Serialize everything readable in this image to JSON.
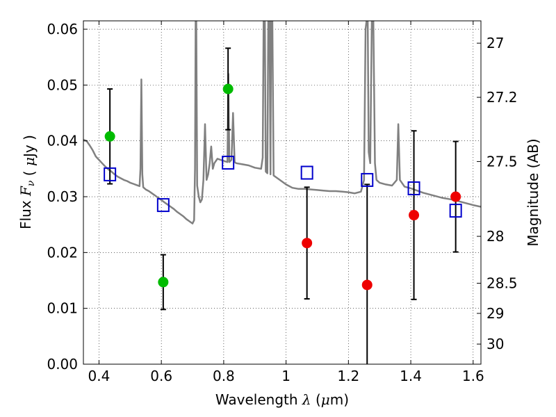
{
  "chart_data": {
    "type": "scatter",
    "xlabel": {
      "prefix": "Wavelength",
      "symbol": "λ",
      "unit_open": "(",
      "unit_mu": "μ",
      "unit_rest": "m)"
    },
    "ylabel": {
      "prefix": "Flux",
      "symbol_main": "F",
      "symbol_sub": "ν",
      "unit_open": "(",
      "unit_mu": "μ",
      "unit_rest": "Jy )"
    },
    "y2label": "Magnitude (AB)",
    "xlim": [
      0.35,
      1.625
    ],
    "ylim": [
      0.0,
      0.0615
    ],
    "grid": true,
    "x_ticks": [
      {
        "value": 0.4,
        "label": "0.4"
      },
      {
        "value": 0.6,
        "label": "0.6"
      },
      {
        "value": 0.8,
        "label": "0.8"
      },
      {
        "value": 1.0,
        "label": "1"
      },
      {
        "value": 1.2,
        "label": "1.2"
      },
      {
        "value": 1.4,
        "label": "1.4"
      },
      {
        "value": 1.6,
        "label": "1.6"
      }
    ],
    "y_ticks": [
      {
        "value": 0.0,
        "label": "0.00"
      },
      {
        "value": 0.01,
        "label": "0.01"
      },
      {
        "value": 0.02,
        "label": "0.02"
      },
      {
        "value": 0.03,
        "label": "0.03"
      },
      {
        "value": 0.04,
        "label": "0.04"
      },
      {
        "value": 0.05,
        "label": "0.05"
      },
      {
        "value": 0.06,
        "label": "0.06"
      }
    ],
    "y2_ticks": [
      {
        "flux": 0.0575,
        "label": "27"
      },
      {
        "flux": 0.0478,
        "label": "27.2"
      },
      {
        "flux": 0.0363,
        "label": "27.5"
      },
      {
        "flux": 0.0229,
        "label": "28"
      },
      {
        "flux": 0.0145,
        "label": "28.5"
      },
      {
        "flux": 0.0091,
        "label": "29"
      },
      {
        "flux": 0.0036,
        "label": "30"
      }
    ],
    "colors": {
      "green": "#00bb00",
      "red": "#ee0000",
      "model_box": "#0000cc",
      "spectrum": "#808080",
      "errorbar": "#000000"
    },
    "observed_points": [
      {
        "x": 0.435,
        "y": 0.0408,
        "err_low": 0.0085,
        "err_high": 0.0085,
        "color": "green"
      },
      {
        "x": 0.606,
        "y": 0.0147,
        "err_low": 0.0049,
        "err_high": 0.0049,
        "color": "green"
      },
      {
        "x": 0.814,
        "y": 0.0493,
        "err_low": 0.0073,
        "err_high": 0.0073,
        "color": "green"
      },
      {
        "x": 1.067,
        "y": 0.0217,
        "err_low": 0.01,
        "err_high": 0.01,
        "color": "red"
      },
      {
        "x": 1.26,
        "y": 0.0142,
        "err_low": 0.018,
        "err_high": 0.018,
        "color": "red"
      },
      {
        "x": 1.41,
        "y": 0.0267,
        "err_low": 0.0151,
        "err_high": 0.0151,
        "color": "red"
      },
      {
        "x": 1.544,
        "y": 0.03,
        "err_low": 0.0099,
        "err_high": 0.0099,
        "color": "red"
      }
    ],
    "model_photometry": [
      {
        "x": 0.435,
        "y": 0.034
      },
      {
        "x": 0.606,
        "y": 0.0285
      },
      {
        "x": 0.814,
        "y": 0.0361
      },
      {
        "x": 1.067,
        "y": 0.0343
      },
      {
        "x": 1.26,
        "y": 0.033
      },
      {
        "x": 1.41,
        "y": 0.0315
      },
      {
        "x": 1.544,
        "y": 0.0275
      }
    ],
    "spectrum": [
      [
        0.35,
        0.0402
      ],
      [
        0.36,
        0.04
      ],
      [
        0.37,
        0.0392
      ],
      [
        0.38,
        0.0383
      ],
      [
        0.39,
        0.0372
      ],
      [
        0.4,
        0.0366
      ],
      [
        0.41,
        0.036
      ],
      [
        0.42,
        0.0354
      ],
      [
        0.43,
        0.0349
      ],
      [
        0.44,
        0.0345
      ],
      [
        0.45,
        0.034
      ],
      [
        0.46,
        0.0336
      ],
      [
        0.47,
        0.0333
      ],
      [
        0.48,
        0.033
      ],
      [
        0.49,
        0.0328
      ],
      [
        0.5,
        0.0325
      ],
      [
        0.51,
        0.0323
      ],
      [
        0.52,
        0.0321
      ],
      [
        0.53,
        0.0319
      ],
      [
        0.533,
        0.035
      ],
      [
        0.536,
        0.051
      ],
      [
        0.539,
        0.034
      ],
      [
        0.542,
        0.0317
      ],
      [
        0.55,
        0.0313
      ],
      [
        0.56,
        0.031
      ],
      [
        0.57,
        0.0306
      ],
      [
        0.58,
        0.0302
      ],
      [
        0.59,
        0.0298
      ],
      [
        0.6,
        0.0294
      ],
      [
        0.61,
        0.029
      ],
      [
        0.62,
        0.0286
      ],
      [
        0.63,
        0.0282
      ],
      [
        0.64,
        0.0278
      ],
      [
        0.65,
        0.0273
      ],
      [
        0.66,
        0.0269
      ],
      [
        0.67,
        0.0265
      ],
      [
        0.68,
        0.026
      ],
      [
        0.69,
        0.0256
      ],
      [
        0.7,
        0.0252
      ],
      [
        0.705,
        0.0258
      ],
      [
        0.708,
        0.035
      ],
      [
        0.71,
        0.0615
      ],
      [
        0.712,
        0.0615
      ],
      [
        0.715,
        0.032
      ],
      [
        0.72,
        0.03
      ],
      [
        0.725,
        0.029
      ],
      [
        0.73,
        0.0295
      ],
      [
        0.735,
        0.033
      ],
      [
        0.74,
        0.043
      ],
      [
        0.745,
        0.033
      ],
      [
        0.75,
        0.034
      ],
      [
        0.755,
        0.036
      ],
      [
        0.76,
        0.039
      ],
      [
        0.765,
        0.035
      ],
      [
        0.77,
        0.036
      ],
      [
        0.78,
        0.0368
      ],
      [
        0.79,
        0.0366
      ],
      [
        0.8,
        0.0364
      ],
      [
        0.812,
        0.0362
      ],
      [
        0.815,
        0.052
      ],
      [
        0.818,
        0.0362
      ],
      [
        0.825,
        0.0366
      ],
      [
        0.83,
        0.045
      ],
      [
        0.835,
        0.0362
      ],
      [
        0.84,
        0.036
      ],
      [
        0.86,
        0.0358
      ],
      [
        0.88,
        0.0356
      ],
      [
        0.9,
        0.0352
      ],
      [
        0.92,
        0.035
      ],
      [
        0.925,
        0.037
      ],
      [
        0.928,
        0.0615
      ],
      [
        0.932,
        0.0615
      ],
      [
        0.935,
        0.0345
      ],
      [
        0.94,
        0.0342
      ],
      [
        0.943,
        0.0615
      ],
      [
        0.947,
        0.0615
      ],
      [
        0.95,
        0.034
      ],
      [
        0.952,
        0.0615
      ],
      [
        0.956,
        0.0615
      ],
      [
        0.96,
        0.0338
      ],
      [
        0.98,
        0.033
      ],
      [
        1.0,
        0.0322
      ],
      [
        1.02,
        0.0316
      ],
      [
        1.04,
        0.0314
      ],
      [
        1.06,
        0.0314
      ],
      [
        1.08,
        0.0313
      ],
      [
        1.1,
        0.0312
      ],
      [
        1.12,
        0.0311
      ],
      [
        1.14,
        0.031
      ],
      [
        1.16,
        0.031
      ],
      [
        1.18,
        0.0309
      ],
      [
        1.2,
        0.0308
      ],
      [
        1.22,
        0.0306
      ],
      [
        1.24,
        0.0309
      ],
      [
        1.25,
        0.033
      ],
      [
        1.255,
        0.06
      ],
      [
        1.258,
        0.0615
      ],
      [
        1.262,
        0.0615
      ],
      [
        1.265,
        0.038
      ],
      [
        1.27,
        0.036
      ],
      [
        1.275,
        0.0615
      ],
      [
        1.28,
        0.0615
      ],
      [
        1.285,
        0.036
      ],
      [
        1.29,
        0.033
      ],
      [
        1.3,
        0.0325
      ],
      [
        1.32,
        0.0322
      ],
      [
        1.34,
        0.032
      ],
      [
        1.355,
        0.033
      ],
      [
        1.36,
        0.043
      ],
      [
        1.365,
        0.033
      ],
      [
        1.38,
        0.0318
      ],
      [
        1.4,
        0.0315
      ],
      [
        1.42,
        0.0311
      ],
      [
        1.44,
        0.0307
      ],
      [
        1.46,
        0.0304
      ],
      [
        1.48,
        0.0301
      ],
      [
        1.5,
        0.0298
      ],
      [
        1.52,
        0.0296
      ],
      [
        1.54,
        0.0294
      ],
      [
        1.56,
        0.0291
      ],
      [
        1.58,
        0.0288
      ],
      [
        1.6,
        0.0285
      ],
      [
        1.625,
        0.0282
      ]
    ]
  }
}
